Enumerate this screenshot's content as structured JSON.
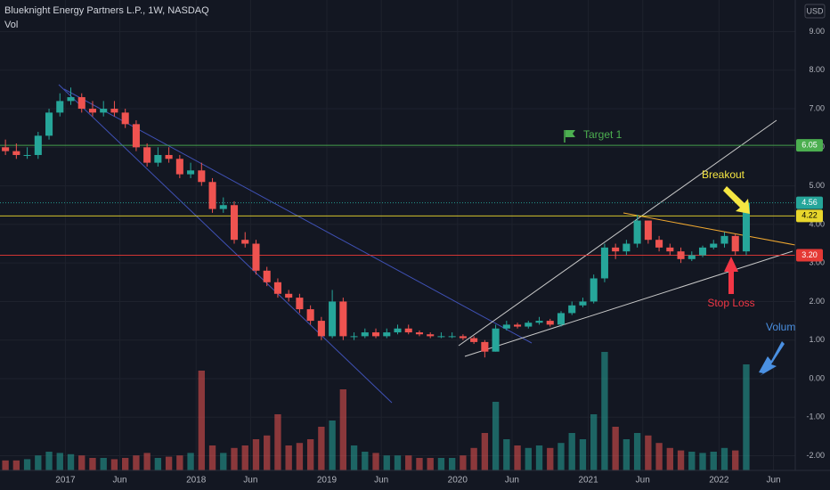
{
  "chart_data": {
    "type": "candlestick",
    "title": "Blueknight Energy Partners L.P., 1W, NASDAQ",
    "volume_label": "Vol",
    "currency": "USD",
    "x": [
      "2016-07",
      "2016-08",
      "2016-09",
      "2016-10",
      "2016-11",
      "2016-12",
      "2017-01",
      "2017-02",
      "2017-03",
      "2017-04",
      "2017-05",
      "2017-06",
      "2017-07",
      "2017-08",
      "2017-09",
      "2017-10",
      "2017-11",
      "2017-12",
      "2018-01",
      "2018-02",
      "2018-03",
      "2018-04",
      "2018-05",
      "2018-06",
      "2018-07",
      "2018-08",
      "2018-09",
      "2018-10",
      "2018-11",
      "2018-12",
      "2019-01",
      "2019-02",
      "2019-03",
      "2019-04",
      "2019-05",
      "2019-06",
      "2019-07",
      "2019-08",
      "2019-09",
      "2019-10",
      "2019-11",
      "2019-12",
      "2020-01",
      "2020-02",
      "2020-03",
      "2020-04",
      "2020-05",
      "2020-06",
      "2020-07",
      "2020-08",
      "2020-09",
      "2020-10",
      "2020-11",
      "2020-12",
      "2021-01",
      "2021-02",
      "2021-03",
      "2021-04",
      "2021-05",
      "2021-06",
      "2021-07",
      "2021-08",
      "2021-09",
      "2021-10",
      "2021-11",
      "2021-12",
      "2022-01",
      "2022-02",
      "2022-03"
    ],
    "open": [
      6.0,
      5.9,
      5.8,
      5.8,
      6.3,
      6.9,
      7.2,
      7.3,
      7.0,
      6.9,
      7.0,
      6.9,
      6.6,
      6.0,
      5.6,
      5.8,
      5.7,
      5.3,
      5.4,
      5.1,
      4.4,
      4.5,
      3.6,
      3.5,
      2.8,
      2.5,
      2.2,
      2.1,
      1.8,
      1.5,
      1.1,
      2.0,
      1.1,
      1.1,
      1.2,
      1.1,
      1.2,
      1.3,
      1.2,
      1.15,
      1.1,
      1.1,
      1.1,
      1.05,
      0.95,
      0.7,
      1.3,
      1.4,
      1.35,
      1.45,
      1.5,
      1.4,
      1.7,
      1.9,
      2.0,
      2.6,
      3.4,
      3.3,
      3.5,
      4.1,
      3.6,
      3.4,
      3.3,
      3.1,
      3.2,
      3.4,
      3.5,
      3.7,
      3.3
    ],
    "high": [
      6.2,
      6.1,
      6.0,
      6.4,
      7.0,
      7.4,
      7.55,
      7.4,
      7.2,
      7.2,
      7.2,
      7.0,
      6.7,
      6.1,
      6.0,
      6.0,
      5.8,
      5.6,
      5.6,
      5.2,
      4.7,
      4.6,
      3.8,
      3.6,
      2.9,
      2.6,
      2.3,
      2.2,
      1.9,
      1.6,
      2.3,
      2.1,
      1.2,
      1.3,
      1.3,
      1.3,
      1.4,
      1.4,
      1.25,
      1.2,
      1.2,
      1.2,
      1.15,
      1.1,
      1.0,
      1.4,
      1.5,
      1.45,
      1.5,
      1.6,
      1.55,
      1.75,
      2.0,
      2.1,
      2.7,
      3.5,
      3.5,
      3.6,
      4.25,
      4.1,
      3.7,
      3.5,
      3.4,
      3.3,
      3.45,
      3.6,
      3.8,
      3.75,
      4.6
    ],
    "low": [
      5.8,
      5.7,
      5.7,
      5.7,
      6.2,
      6.8,
      7.1,
      6.9,
      6.8,
      6.8,
      6.8,
      6.5,
      5.9,
      5.5,
      5.5,
      5.6,
      5.2,
      5.2,
      5.0,
      4.3,
      4.3,
      3.5,
      3.4,
      2.7,
      2.4,
      2.1,
      2.0,
      1.7,
      1.4,
      1.0,
      1.05,
      1.0,
      1.0,
      1.05,
      1.05,
      1.05,
      1.15,
      1.15,
      1.1,
      1.05,
      1.05,
      1.05,
      1.0,
      0.9,
      0.55,
      0.7,
      1.25,
      1.3,
      1.3,
      1.4,
      1.35,
      1.35,
      1.65,
      1.85,
      1.95,
      2.5,
      3.1,
      3.2,
      3.4,
      3.5,
      3.3,
      3.2,
      3.0,
      3.05,
      3.15,
      3.35,
      3.4,
      3.2,
      3.2
    ],
    "close": [
      5.9,
      5.8,
      5.8,
      6.3,
      6.9,
      7.2,
      7.3,
      7.0,
      6.9,
      7.0,
      6.9,
      6.6,
      6.0,
      5.6,
      5.8,
      5.7,
      5.3,
      5.4,
      5.1,
      4.4,
      4.5,
      3.6,
      3.5,
      2.8,
      2.5,
      2.2,
      2.1,
      1.8,
      1.5,
      1.1,
      2.0,
      1.1,
      1.1,
      1.2,
      1.1,
      1.2,
      1.3,
      1.2,
      1.15,
      1.1,
      1.1,
      1.1,
      1.05,
      0.95,
      0.7,
      1.3,
      1.4,
      1.35,
      1.45,
      1.5,
      1.4,
      1.7,
      1.9,
      2.0,
      2.6,
      3.4,
      3.3,
      3.5,
      4.1,
      3.6,
      3.4,
      3.3,
      3.1,
      3.2,
      3.4,
      3.5,
      3.7,
      3.3,
      4.56
    ],
    "volume": [
      8,
      8,
      9,
      12,
      15,
      14,
      13,
      12,
      10,
      10,
      9,
      10,
      12,
      14,
      10,
      11,
      12,
      14,
      80,
      20,
      14,
      18,
      20,
      25,
      28,
      45,
      20,
      22,
      25,
      35,
      40,
      65,
      20,
      15,
      14,
      12,
      12,
      12,
      10,
      10,
      10,
      10,
      12,
      18,
      30,
      55,
      25,
      20,
      18,
      20,
      18,
      22,
      30,
      25,
      45,
      95,
      35,
      25,
      30,
      28,
      22,
      18,
      16,
      15,
      14,
      15,
      18,
      16,
      85
    ],
    "up_color": "#26a69a",
    "down_color": "#ef5350",
    "xlim": [
      "2016-07",
      "2022-08"
    ],
    "xticks": [
      {
        "value": "2017-01",
        "label": "2017"
      },
      {
        "value": "2017-06",
        "label": "Jun"
      },
      {
        "value": "2018-01",
        "label": "2018"
      },
      {
        "value": "2018-06",
        "label": "Jun"
      },
      {
        "value": "2019-01",
        "label": "2019"
      },
      {
        "value": "2019-06",
        "label": "Jun"
      },
      {
        "value": "2020-01",
        "label": "2020"
      },
      {
        "value": "2020-06",
        "label": "Jun"
      },
      {
        "value": "2021-01",
        "label": "2021"
      },
      {
        "value": "2021-06",
        "label": "Jun"
      },
      {
        "value": "2022-01",
        "label": "2022"
      },
      {
        "value": "2022-06",
        "label": "Jun"
      }
    ],
    "ylim": [
      -2.38,
      9.82
    ],
    "yticks": [
      {
        "value": 9,
        "label": "9.00"
      },
      {
        "value": 8,
        "label": "8.00"
      },
      {
        "value": 7,
        "label": "7.00"
      },
      {
        "value": 6,
        "label": "6.00"
      },
      {
        "value": 5,
        "label": "5.00"
      },
      {
        "value": 4,
        "label": "4.00"
      },
      {
        "value": 3,
        "label": "3.00"
      },
      {
        "value": 2,
        "label": "2.00"
      },
      {
        "value": 1,
        "label": "1.00"
      },
      {
        "value": 0,
        "label": "0.00"
      },
      {
        "value": -1,
        "label": "-1.00"
      },
      {
        "value": -2,
        "label": "-2.00"
      }
    ],
    "vlim": [
      0,
      100
    ],
    "grid": true,
    "levels": [
      {
        "value": 6.05,
        "color": "#4caf50",
        "text_color": "#ffffff"
      },
      {
        "value": 4.56,
        "color": "#26a69a",
        "text_color": "#ffffff"
      },
      {
        "value": 4.22,
        "color": "#e8d62c",
        "text_color": "#000000"
      },
      {
        "value": 3.2,
        "label": "3.20",
        "color": "#e53935",
        "text_color": "#ffffff"
      }
    ],
    "annotations": [
      "Target 1",
      "Breakout",
      "Stop Loss",
      "Volume"
    ]
  }
}
